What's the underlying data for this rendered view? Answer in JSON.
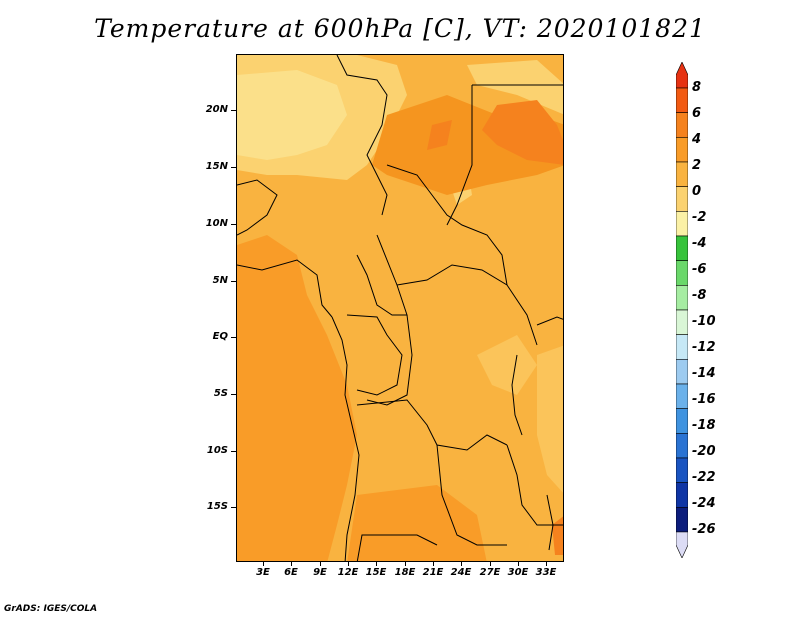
{
  "title": "Temperature at 600hPa [C], VT: 2020101821",
  "credit": "GrADS: IGES/COLA",
  "map": {
    "lat_labels": [
      "20N",
      "15N",
      "10N",
      "5N",
      "EQ",
      "5S",
      "10S",
      "15S"
    ],
    "lon_labels": [
      "3E",
      "6E",
      "9E",
      "12E",
      "15E",
      "18E",
      "21E",
      "24E",
      "27E",
      "30E",
      "33E"
    ]
  },
  "colorbar": {
    "labels": [
      "8",
      "6",
      "4",
      "2",
      "0",
      "-2",
      "-4",
      "-6",
      "-8",
      "-10",
      "-12",
      "-14",
      "-16",
      "-18",
      "-20",
      "-22",
      "-24",
      "-26"
    ],
    "colors": [
      "#e63212",
      "#f25a12",
      "#f5821e",
      "#f99c28",
      "#f9b340",
      "#fbd270",
      "#fbf1a6",
      "#37c33b",
      "#6ad86a",
      "#a6eda2",
      "#d9f6d6",
      "#c6e8f6",
      "#9dcbf0",
      "#6bb1ea",
      "#3f93e0",
      "#2a73d3",
      "#1954c1",
      "#0f35a5",
      "#0c1d7c",
      "#dcdcf5"
    ]
  }
}
